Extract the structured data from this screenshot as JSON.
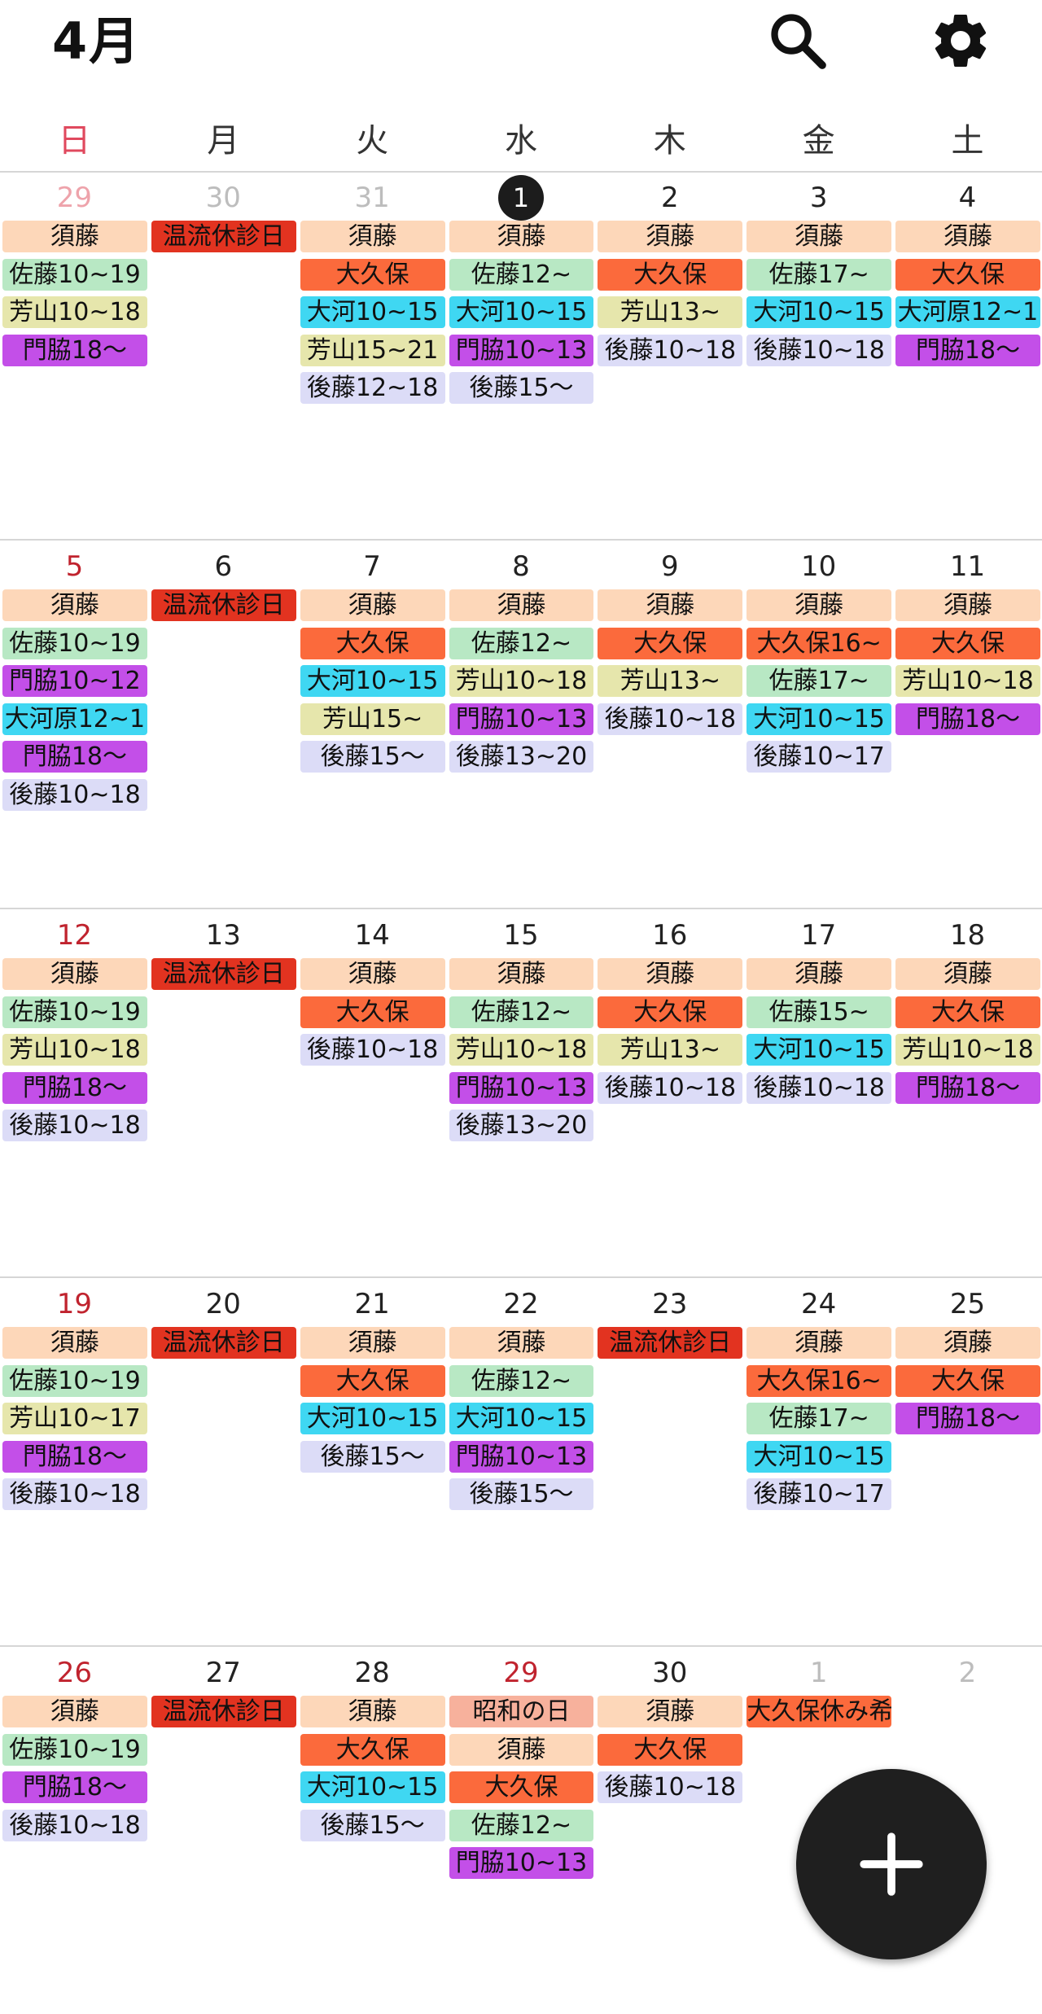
{
  "header": {
    "month_title": "4月",
    "search_icon": "search-icon",
    "settings_icon": "gear-icon"
  },
  "weekdays": [
    "日",
    "月",
    "火",
    "水",
    "木",
    "金",
    "土"
  ],
  "colors": {
    "sudo": "#fdd7b9",
    "okubo": "#fb6a3c",
    "sato": "#b8e8c4",
    "yoshiyama": "#e6e6ac",
    "okawa": "#3fd7f2",
    "kadowaki": "#c34fe8",
    "goto": "#dcdcf7",
    "holiday_closed": "#e23320",
    "public_holiday": "#f7b19c",
    "sunday": "#c0232e",
    "today_circle": "#1c1c1c"
  },
  "weeks": [
    [
      {
        "date": "29",
        "other": true,
        "events": [
          {
            "t": "須藤",
            "c": "sudo"
          },
          {
            "t": "佐藤10~19",
            "c": "sato"
          },
          {
            "t": "芳山10~18",
            "c": "yoshiyama"
          },
          {
            "t": "門脇18〜",
            "c": "kadowaki"
          }
        ]
      },
      {
        "date": "30",
        "other": true,
        "events": [
          {
            "t": "温流休診日",
            "c": "holiday_closed"
          }
        ]
      },
      {
        "date": "31",
        "other": true,
        "events": [
          {
            "t": "須藤",
            "c": "sudo"
          },
          {
            "t": "大久保",
            "c": "okubo"
          },
          {
            "t": "大河10~15",
            "c": "okawa"
          },
          {
            "t": "芳山15~21",
            "c": "yoshiyama"
          },
          {
            "t": "後藤12~18",
            "c": "goto"
          }
        ]
      },
      {
        "date": "1",
        "today": true,
        "events": [
          {
            "t": "須藤",
            "c": "sudo"
          },
          {
            "t": "佐藤12~",
            "c": "sato"
          },
          {
            "t": "大河10~15",
            "c": "okawa"
          },
          {
            "t": "門脇10~13",
            "c": "kadowaki"
          },
          {
            "t": "後藤15〜",
            "c": "goto"
          }
        ]
      },
      {
        "date": "2",
        "events": [
          {
            "t": "須藤",
            "c": "sudo"
          },
          {
            "t": "大久保",
            "c": "okubo"
          },
          {
            "t": "芳山13~",
            "c": "yoshiyama"
          },
          {
            "t": "後藤10~18",
            "c": "goto"
          }
        ]
      },
      {
        "date": "3",
        "events": [
          {
            "t": "須藤",
            "c": "sudo"
          },
          {
            "t": "佐藤17~",
            "c": "sato"
          },
          {
            "t": "大河10~15",
            "c": "okawa"
          },
          {
            "t": "後藤10~18",
            "c": "goto"
          }
        ]
      },
      {
        "date": "4",
        "events": [
          {
            "t": "須藤",
            "c": "sudo"
          },
          {
            "t": "大久保",
            "c": "okubo"
          },
          {
            "t": "大河原12~1",
            "c": "okawa"
          },
          {
            "t": "門脇18〜",
            "c": "kadowaki"
          }
        ]
      }
    ],
    [
      {
        "date": "5",
        "events": [
          {
            "t": "須藤",
            "c": "sudo"
          },
          {
            "t": "佐藤10~19",
            "c": "sato"
          },
          {
            "t": "門脇10~12",
            "c": "kadowaki"
          },
          {
            "t": "大河原12~1",
            "c": "okawa"
          },
          {
            "t": "門脇18〜",
            "c": "kadowaki"
          },
          {
            "t": "後藤10~18",
            "c": "goto"
          }
        ]
      },
      {
        "date": "6",
        "events": [
          {
            "t": "温流休診日",
            "c": "holiday_closed"
          }
        ]
      },
      {
        "date": "7",
        "events": [
          {
            "t": "須藤",
            "c": "sudo"
          },
          {
            "t": "大久保",
            "c": "okubo"
          },
          {
            "t": "大河10~15",
            "c": "okawa"
          },
          {
            "t": "芳山15~",
            "c": "yoshiyama"
          },
          {
            "t": "後藤15〜",
            "c": "goto"
          }
        ]
      },
      {
        "date": "8",
        "events": [
          {
            "t": "須藤",
            "c": "sudo"
          },
          {
            "t": "佐藤12~",
            "c": "sato"
          },
          {
            "t": "芳山10~18",
            "c": "yoshiyama"
          },
          {
            "t": "門脇10~13",
            "c": "kadowaki"
          },
          {
            "t": "後藤13~20",
            "c": "goto"
          }
        ]
      },
      {
        "date": "9",
        "events": [
          {
            "t": "須藤",
            "c": "sudo"
          },
          {
            "t": "大久保",
            "c": "okubo"
          },
          {
            "t": "芳山13~",
            "c": "yoshiyama"
          },
          {
            "t": "後藤10~18",
            "c": "goto"
          }
        ]
      },
      {
        "date": "10",
        "events": [
          {
            "t": "須藤",
            "c": "sudo"
          },
          {
            "t": "大久保16~",
            "c": "okubo"
          },
          {
            "t": "佐藤17~",
            "c": "sato"
          },
          {
            "t": "大河10~15",
            "c": "okawa"
          },
          {
            "t": "後藤10~17",
            "c": "goto"
          }
        ]
      },
      {
        "date": "11",
        "events": [
          {
            "t": "須藤",
            "c": "sudo"
          },
          {
            "t": "大久保",
            "c": "okubo"
          },
          {
            "t": "芳山10~18",
            "c": "yoshiyama"
          },
          {
            "t": "門脇18〜",
            "c": "kadowaki"
          }
        ]
      }
    ],
    [
      {
        "date": "12",
        "events": [
          {
            "t": "須藤",
            "c": "sudo"
          },
          {
            "t": "佐藤10~19",
            "c": "sato"
          },
          {
            "t": "芳山10~18",
            "c": "yoshiyama"
          },
          {
            "t": "門脇18〜",
            "c": "kadowaki"
          },
          {
            "t": "後藤10~18",
            "c": "goto"
          }
        ]
      },
      {
        "date": "13",
        "events": [
          {
            "t": "温流休診日",
            "c": "holiday_closed"
          }
        ]
      },
      {
        "date": "14",
        "events": [
          {
            "t": "須藤",
            "c": "sudo"
          },
          {
            "t": "大久保",
            "c": "okubo"
          },
          {
            "t": "後藤10~18",
            "c": "goto"
          }
        ]
      },
      {
        "date": "15",
        "events": [
          {
            "t": "須藤",
            "c": "sudo"
          },
          {
            "t": "佐藤12~",
            "c": "sato"
          },
          {
            "t": "芳山10~18",
            "c": "yoshiyama"
          },
          {
            "t": "門脇10~13",
            "c": "kadowaki"
          },
          {
            "t": "後藤13~20",
            "c": "goto"
          }
        ]
      },
      {
        "date": "16",
        "events": [
          {
            "t": "須藤",
            "c": "sudo"
          },
          {
            "t": "大久保",
            "c": "okubo"
          },
          {
            "t": "芳山13~",
            "c": "yoshiyama"
          },
          {
            "t": "後藤10~18",
            "c": "goto"
          }
        ]
      },
      {
        "date": "17",
        "events": [
          {
            "t": "須藤",
            "c": "sudo"
          },
          {
            "t": "佐藤15~",
            "c": "sato"
          },
          {
            "t": "大河10~15",
            "c": "okawa"
          },
          {
            "t": "後藤10~18",
            "c": "goto"
          }
        ]
      },
      {
        "date": "18",
        "events": [
          {
            "t": "須藤",
            "c": "sudo"
          },
          {
            "t": "大久保",
            "c": "okubo"
          },
          {
            "t": "芳山10~18",
            "c": "yoshiyama"
          },
          {
            "t": "門脇18〜",
            "c": "kadowaki"
          }
        ]
      }
    ],
    [
      {
        "date": "19",
        "events": [
          {
            "t": "須藤",
            "c": "sudo"
          },
          {
            "t": "佐藤10~19",
            "c": "sato"
          },
          {
            "t": "芳山10~17",
            "c": "yoshiyama"
          },
          {
            "t": "門脇18〜",
            "c": "kadowaki"
          },
          {
            "t": "後藤10~18",
            "c": "goto"
          }
        ]
      },
      {
        "date": "20",
        "events": [
          {
            "t": "温流休診日",
            "c": "holiday_closed"
          }
        ]
      },
      {
        "date": "21",
        "events": [
          {
            "t": "須藤",
            "c": "sudo"
          },
          {
            "t": "大久保",
            "c": "okubo"
          },
          {
            "t": "大河10~15",
            "c": "okawa"
          },
          {
            "t": "後藤15〜",
            "c": "goto"
          }
        ]
      },
      {
        "date": "22",
        "events": [
          {
            "t": "須藤",
            "c": "sudo"
          },
          {
            "t": "佐藤12~",
            "c": "sato"
          },
          {
            "t": "大河10~15",
            "c": "okawa"
          },
          {
            "t": "門脇10~13",
            "c": "kadowaki"
          },
          {
            "t": "後藤15〜",
            "c": "goto"
          }
        ]
      },
      {
        "date": "23",
        "events": [
          {
            "t": "温流休診日",
            "c": "holiday_closed"
          }
        ]
      },
      {
        "date": "24",
        "events": [
          {
            "t": "須藤",
            "c": "sudo"
          },
          {
            "t": "大久保16~",
            "c": "okubo"
          },
          {
            "t": "佐藤17~",
            "c": "sato"
          },
          {
            "t": "大河10~15",
            "c": "okawa"
          },
          {
            "t": "後藤10~17",
            "c": "goto"
          }
        ]
      },
      {
        "date": "25",
        "events": [
          {
            "t": "須藤",
            "c": "sudo"
          },
          {
            "t": "大久保",
            "c": "okubo"
          },
          {
            "t": "門脇18〜",
            "c": "kadowaki"
          }
        ]
      }
    ],
    [
      {
        "date": "26",
        "events": [
          {
            "t": "須藤",
            "c": "sudo"
          },
          {
            "t": "佐藤10~19",
            "c": "sato"
          },
          {
            "t": "門脇18〜",
            "c": "kadowaki"
          },
          {
            "t": "後藤10~18",
            "c": "goto"
          }
        ]
      },
      {
        "date": "27",
        "events": [
          {
            "t": "温流休診日",
            "c": "holiday_closed"
          }
        ]
      },
      {
        "date": "28",
        "events": [
          {
            "t": "須藤",
            "c": "sudo"
          },
          {
            "t": "大久保",
            "c": "okubo"
          },
          {
            "t": "大河10~15",
            "c": "okawa"
          },
          {
            "t": "後藤15〜",
            "c": "goto"
          }
        ]
      },
      {
        "date": "29",
        "holiday": true,
        "events": [
          {
            "t": "昭和の日",
            "c": "public_holiday"
          },
          {
            "t": "須藤",
            "c": "sudo"
          },
          {
            "t": "大久保",
            "c": "okubo"
          },
          {
            "t": "佐藤12~",
            "c": "sato"
          },
          {
            "t": "門脇10~13",
            "c": "kadowaki"
          }
        ]
      },
      {
        "date": "30",
        "events": [
          {
            "t": "須藤",
            "c": "sudo"
          },
          {
            "t": "大久保",
            "c": "okubo"
          },
          {
            "t": "後藤10~18",
            "c": "goto"
          }
        ]
      },
      {
        "date": "1",
        "other": true,
        "events": [
          {
            "t": "大久保休み希",
            "c": "okubo"
          }
        ]
      },
      {
        "date": "2",
        "other": true,
        "events": []
      }
    ]
  ],
  "fab": {
    "icon": "plus-icon"
  }
}
